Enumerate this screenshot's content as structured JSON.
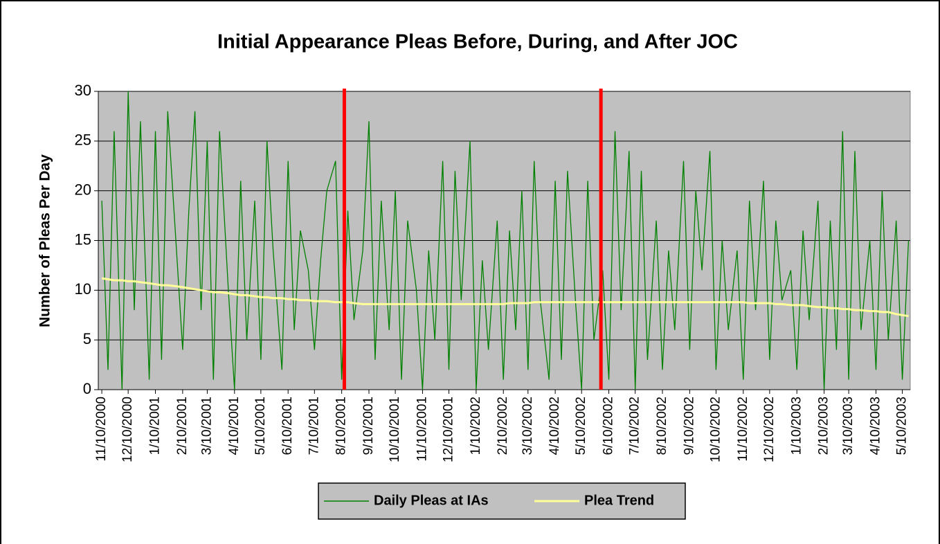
{
  "chart_data": {
    "type": "line",
    "title": "Initial Appearance Pleas Before, During, and After JOC",
    "y_label": "Number of Pleas Per Day",
    "x": [
      "11/10/2000",
      "11/17/2000",
      "11/24/2000",
      "12/3/2000",
      "12/10/2000",
      "12/17/2000",
      "12/24/2000",
      "1/3/2001",
      "1/10/2001",
      "1/17/2001",
      "1/24/2001",
      "2/3/2001",
      "2/10/2001",
      "2/17/2001",
      "2/24/2001",
      "3/3/2001",
      "3/10/2001",
      "3/17/2001",
      "3/24/2001",
      "4/3/2001",
      "4/10/2001",
      "4/17/2001",
      "4/24/2001",
      "5/3/2001",
      "5/10/2001",
      "5/17/2001",
      "5/24/2001",
      "6/3/2001",
      "6/10/2001",
      "6/17/2001",
      "6/24/2001",
      "7/3/2001",
      "7/10/2001",
      "7/17/2001",
      "7/24/2001",
      "8/3/2001",
      "8/10/2001",
      "8/17/2001",
      "8/24/2001",
      "9/3/2001",
      "9/10/2001",
      "9/17/2001",
      "9/24/2001",
      "10/3/2001",
      "10/10/2001",
      "10/17/2001",
      "10/24/2001",
      "11/3/2001",
      "11/10/2001",
      "11/17/2001",
      "11/24/2001",
      "12/3/2001",
      "12/10/2001",
      "12/17/2001",
      "12/24/2001",
      "1/3/2002",
      "1/10/2002",
      "1/17/2002",
      "1/24/2002",
      "2/3/2002",
      "2/10/2002",
      "2/17/2002",
      "2/24/2002",
      "3/3/2002",
      "3/10/2002",
      "3/17/2002",
      "3/24/2002",
      "4/3/2002",
      "4/10/2002",
      "4/17/2002",
      "4/24/2002",
      "5/3/2002",
      "5/10/2002",
      "5/17/2002",
      "5/24/2002",
      "6/3/2002",
      "6/10/2002",
      "6/17/2002",
      "6/24/2002",
      "7/3/2002",
      "7/10/2002",
      "7/17/2002",
      "7/24/2002",
      "8/3/2002",
      "8/10/2002",
      "8/17/2002",
      "8/24/2002",
      "9/3/2002",
      "9/10/2002",
      "9/17/2002",
      "9/24/2002",
      "10/3/2002",
      "10/10/2002",
      "10/17/2002",
      "10/24/2002",
      "11/3/2002",
      "11/10/2002",
      "11/17/2002",
      "11/24/2002",
      "12/3/2002",
      "12/10/2002",
      "12/17/2002",
      "12/24/2002",
      "1/3/2003",
      "1/10/2003",
      "1/17/2003",
      "1/24/2003",
      "2/3/2003",
      "2/10/2003",
      "2/17/2003",
      "2/24/2003",
      "3/3/2003",
      "3/10/2003",
      "3/17/2003",
      "3/24/2003",
      "4/3/2003",
      "4/10/2003",
      "4/17/2003",
      "4/24/2003",
      "5/3/2003",
      "5/10/2003",
      "5/17/2003"
    ],
    "series": [
      {
        "name": "Daily Pleas at IAs",
        "color": "#008000",
        "values": [
          19,
          2,
          26,
          0,
          30,
          8,
          27,
          1,
          26,
          3,
          28,
          14,
          4,
          18,
          28,
          8,
          25,
          1,
          26,
          10,
          0,
          21,
          5,
          19,
          3,
          25,
          14,
          2,
          23,
          6,
          16,
          12,
          4,
          13,
          20,
          23,
          1,
          18,
          7,
          14,
          27,
          3,
          19,
          6,
          20,
          1,
          17,
          10,
          0,
          14,
          5,
          23,
          2,
          22,
          9,
          25,
          0,
          13,
          4,
          17,
          1,
          16,
          6,
          20,
          2,
          23,
          9,
          1,
          21,
          3,
          22,
          9,
          0,
          21,
          5,
          12,
          1,
          26,
          8,
          24,
          0,
          22,
          3,
          17,
          2,
          14,
          6,
          23,
          4,
          20,
          12,
          24,
          2,
          15,
          6,
          14,
          1,
          19,
          8,
          21,
          3,
          17,
          9,
          12,
          2,
          16,
          7,
          19,
          0,
          17,
          4,
          26,
          1,
          24,
          6,
          15,
          2,
          20,
          5,
          17,
          1,
          15
        ]
      },
      {
        "name": "Plea Trend",
        "color": "#ffff99",
        "values": [
          11.2,
          11.1,
          11.0,
          11.0,
          10.9,
          10.9,
          10.8,
          10.7,
          10.6,
          10.5,
          10.5,
          10.4,
          10.3,
          10.2,
          10.1,
          10.0,
          9.9,
          9.8,
          9.8,
          9.7,
          9.6,
          9.5,
          9.5,
          9.4,
          9.3,
          9.3,
          9.2,
          9.2,
          9.1,
          9.1,
          9.0,
          9.0,
          8.9,
          8.9,
          8.9,
          8.8,
          8.8,
          8.8,
          8.7,
          8.6,
          8.6,
          8.6,
          8.6,
          8.6,
          8.6,
          8.6,
          8.6,
          8.6,
          8.6,
          8.6,
          8.6,
          8.6,
          8.6,
          8.6,
          8.6,
          8.6,
          8.6,
          8.6,
          8.6,
          8.6,
          8.6,
          8.7,
          8.7,
          8.7,
          8.7,
          8.8,
          8.8,
          8.8,
          8.8,
          8.8,
          8.8,
          8.8,
          8.8,
          8.8,
          8.8,
          8.8,
          8.8,
          8.8,
          8.8,
          8.8,
          8.8,
          8.8,
          8.8,
          8.8,
          8.8,
          8.8,
          8.8,
          8.8,
          8.8,
          8.8,
          8.8,
          8.8,
          8.8,
          8.8,
          8.8,
          8.8,
          8.8,
          8.7,
          8.7,
          8.7,
          8.7,
          8.6,
          8.6,
          8.5,
          8.5,
          8.5,
          8.4,
          8.3,
          8.3,
          8.2,
          8.2,
          8.1,
          8.1,
          8.0,
          8.0,
          7.9,
          7.9,
          7.8,
          7.8,
          7.6,
          7.5,
          7.4
        ]
      }
    ],
    "markers": [
      {
        "x": "8/13/2001",
        "color": "#ff0000"
      },
      {
        "x": "6/1/2002",
        "color": "#ff0000"
      }
    ],
    "xlim": [
      "11/6/2000",
      "5/19/2003"
    ],
    "xticks": [
      "11/10/2000",
      "12/10/2000",
      "1/10/2001",
      "2/10/2001",
      "3/10/2001",
      "4/10/2001",
      "5/10/2001",
      "6/10/2001",
      "7/10/2001",
      "8/10/2001",
      "9/10/2001",
      "10/10/2001",
      "11/10/2001",
      "12/10/2001",
      "1/10/2002",
      "2/10/2002",
      "3/10/2002",
      "4/10/2002",
      "5/10/2002",
      "6/10/2002",
      "7/10/2002",
      "8/10/2002",
      "9/10/2002",
      "10/10/2002",
      "11/10/2002",
      "12/10/2002",
      "1/10/2003",
      "2/10/2003",
      "3/10/2003",
      "4/10/2003",
      "5/10/2003"
    ],
    "ylim": [
      0,
      30
    ],
    "yticks": [
      0,
      5,
      10,
      15,
      20,
      25,
      30
    ],
    "grid": true,
    "plot_background": "#c0c0c0",
    "legend": "bottom"
  }
}
